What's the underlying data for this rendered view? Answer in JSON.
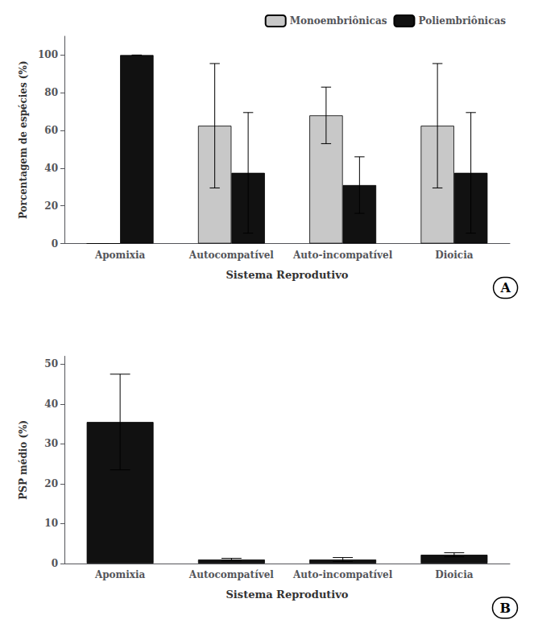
{
  "chart_data": [
    {
      "type": "bar",
      "categories": [
        "Apomixia",
        "Autocompatível",
        "Auto-incompatível",
        "Dioicia"
      ],
      "series": [
        {
          "name": "Monoembriônicas",
          "color": "#c8c8c8",
          "values": [
            0,
            62.5,
            68.0,
            62.5
          ],
          "errors": [
            0,
            33.0,
            15.0,
            33.0
          ]
        },
        {
          "name": "Poliembriônicas",
          "color": "#111111",
          "values": [
            100,
            37.5,
            31.0,
            37.5
          ],
          "errors": [
            0,
            32.0,
            15.0,
            32.0
          ]
        }
      ],
      "xlabel": "Sistema Reprodutivo",
      "ylabel": "Porcentagem de espécies (%)",
      "ylim": [
        0,
        110
      ],
      "yticks": [
        0,
        20,
        40,
        60,
        80,
        100
      ],
      "grid": false,
      "legend": "upper right",
      "annotation": "A"
    },
    {
      "type": "bar",
      "categories": [
        "Apomixia",
        "Autocompatível",
        "Auto-incompatível",
        "Dioicia"
      ],
      "values": [
        35.5,
        1.0,
        1.0,
        2.2
      ],
      "errors": [
        12.0,
        0.3,
        0.5,
        0.5
      ],
      "color": "#111111",
      "xlabel": "Sistema Reprodutivo",
      "ylabel": "PSP médio (%)",
      "ylim": [
        0,
        52
      ],
      "yticks": [
        0,
        10,
        20,
        30,
        40,
        50
      ],
      "grid": false,
      "annotation": "B"
    }
  ]
}
